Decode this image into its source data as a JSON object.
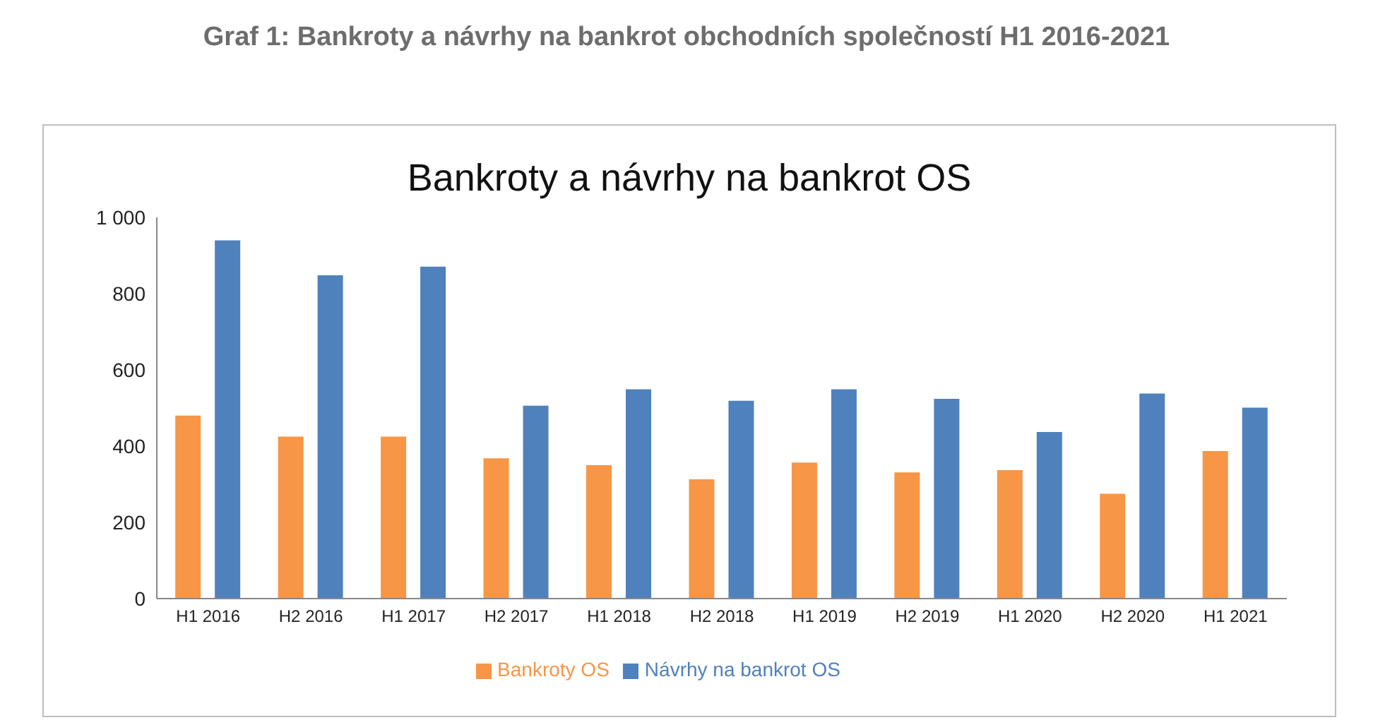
{
  "chart_data": {
    "type": "bar",
    "title": "Bankroty a návrhy na bankrot OS",
    "subtitle": "Graf 1: Bankroty a návrhy na bankrot obchodních společností H1 2016-2021",
    "categories": [
      "H1 2016",
      "H2 2016",
      "H1 2017",
      "H2 2017",
      "H1 2018",
      "H2 2018",
      "H1 2019",
      "H2 2019",
      "H1 2020",
      "H2 2020",
      "H1 2021"
    ],
    "series": [
      {
        "name": "Bankroty OS",
        "color": "#f79646",
        "values": [
          480,
          425,
          425,
          368,
          350,
          313,
          357,
          331,
          337,
          275,
          387
        ]
      },
      {
        "name": "Návrhy na bankrot OS",
        "color": "#4f81bd",
        "values": [
          940,
          848,
          871,
          506,
          549,
          519,
          549,
          524,
          437,
          538,
          501
        ]
      }
    ],
    "ylim": [
      0,
      1000
    ],
    "yticks": [
      0,
      200,
      400,
      600,
      800,
      {
        "value": 1000,
        "label": "1 000"
      }
    ],
    "grid": false,
    "legend": "bottom"
  }
}
